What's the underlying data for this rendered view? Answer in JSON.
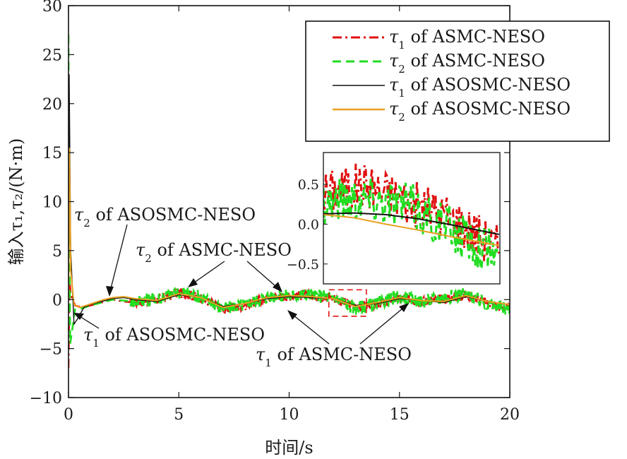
{
  "chart_data": {
    "type": "line",
    "title": "",
    "xlabel": "时间/s",
    "ylabel": "输入τ₁,τ₂/(N·m)",
    "xlim": [
      0,
      20
    ],
    "ylim": [
      -10,
      30
    ],
    "xticks": [
      "0",
      "5",
      "10",
      "15",
      "20"
    ],
    "yticks": [
      "30",
      "25",
      "20",
      "15",
      "10",
      "5",
      "0",
      "−5",
      "−10"
    ],
    "grid": false,
    "legend_position": "top-right",
    "legend": [
      {
        "symbol": "τ",
        "sub": "1",
        "text": " of ASMC-NESO"
      },
      {
        "symbol": "τ",
        "sub": "2",
        "text": " of ASMC-NESO"
      },
      {
        "symbol": "τ",
        "sub": "1",
        "text": " of ASOSMC-NESO"
      },
      {
        "symbol": "τ",
        "sub": "2",
        "text": " of ASOSMC-NESO"
      }
    ],
    "series": [
      {
        "name": "τ1 of ASMC-NESO",
        "color": "#e01010",
        "dash": "dash-dot",
        "x": [
          0,
          0.05,
          0.1,
          0.3,
          0.6,
          1.0,
          1.5,
          2.0,
          2.5,
          3,
          4,
          5,
          6,
          7,
          8,
          9,
          10,
          11,
          12,
          13,
          14,
          15,
          16,
          17,
          18,
          19,
          20
        ],
        "y": [
          -7.0,
          2.0,
          0.5,
          -0.6,
          -0.8,
          -0.6,
          -0.3,
          0.0,
          -0.2,
          -0.3,
          0.0,
          0.7,
          0.2,
          -1.0,
          -0.6,
          0.2,
          0.4,
          0.4,
          0.2,
          -0.8,
          -0.5,
          0.2,
          -0.2,
          0.0,
          0.5,
          -0.4,
          -1.0
        ],
        "noise": 0.5
      },
      {
        "name": "τ2 of ASMC-NESO",
        "color": "#22dd22",
        "dash": "dash",
        "x": [
          0,
          0.03,
          0.08,
          0.3,
          0.6,
          1.0,
          1.5,
          2.0,
          2.5,
          3,
          4,
          5,
          6,
          7,
          8,
          9,
          10,
          11,
          12,
          13,
          14,
          15,
          16,
          17,
          18,
          19,
          20
        ],
        "y": [
          27.0,
          8.0,
          -4.5,
          -1.0,
          -0.9,
          -0.6,
          -0.3,
          0.0,
          -0.1,
          -0.2,
          0.1,
          0.8,
          0.3,
          -1.0,
          -0.5,
          0.3,
          0.4,
          0.5,
          0.2,
          -0.9,
          -0.4,
          0.3,
          -0.2,
          0.2,
          0.6,
          -0.5,
          -1.0
        ],
        "noise": 0.7
      },
      {
        "name": "τ1 of ASOSMC-NESO",
        "color": "#111111",
        "dash": "solid",
        "x": [
          0,
          0.03,
          0.1,
          0.25,
          0.4,
          0.7,
          1.0,
          1.5,
          2.0,
          2.5,
          3,
          4,
          5,
          6,
          7,
          8,
          9,
          10,
          11,
          12,
          13,
          14,
          15,
          16,
          17,
          18,
          19,
          20
        ],
        "y": [
          0.0,
          23.0,
          5.0,
          -2.5,
          -2.0,
          -0.8,
          -0.5,
          -0.2,
          0.1,
          0.2,
          0.0,
          -0.2,
          0.5,
          0.2,
          -0.7,
          -0.4,
          0.1,
          0.3,
          0.2,
          0.1,
          -0.6,
          -0.4,
          0.1,
          -0.1,
          -0.3,
          0.3,
          -0.2,
          -0.5
        ],
        "noise": 0.0
      },
      {
        "name": "τ2 of ASOSMC-NESO",
        "color": "#e8a020",
        "dash": "solid",
        "x": [
          0,
          0.04,
          0.1,
          0.25,
          0.5,
          0.8,
          1.2,
          1.6,
          2.0,
          2.5,
          3,
          4,
          5,
          6,
          7,
          8,
          9,
          10,
          11,
          12,
          13,
          14,
          15,
          16,
          17,
          18,
          19,
          20
        ],
        "y": [
          0.0,
          15.5,
          3.0,
          -0.5,
          -0.8,
          -0.6,
          -0.3,
          0.0,
          0.2,
          0.3,
          0.1,
          -0.1,
          0.6,
          0.2,
          -0.8,
          -0.4,
          0.2,
          0.4,
          0.3,
          0.1,
          -0.7,
          -0.3,
          0.2,
          -0.1,
          -0.2,
          0.4,
          -0.2,
          -0.5
        ],
        "noise": 0.0
      }
    ],
    "annotations": [
      {
        "symbol": "τ",
        "sub": "2",
        "text": " of ASOSMC-NESO"
      },
      {
        "symbol": "τ",
        "sub": "2",
        "text": " of ASMC-NESO"
      },
      {
        "symbol": "τ",
        "sub": "1",
        "text": " of ASOSMC-NESO"
      },
      {
        "symbol": "τ",
        "sub": "1",
        "text": " of ASMC-NESO"
      }
    ],
    "zoom_region": {
      "x": [
        11.8,
        13.5
      ],
      "y": [
        -1.7,
        1.0
      ]
    },
    "inset": {
      "xlim": [
        11.8,
        13.5
      ],
      "ylim": [
        -0.75,
        0.9
      ],
      "yticks": [
        "0.5",
        "0.0",
        "−0.5"
      ],
      "series": [
        {
          "name": "τ1 of ASMC-NESO",
          "color": "#e01010",
          "x": [
            11.8,
            12.2,
            12.6,
            13.0,
            13.5
          ],
          "y": [
            0.4,
            0.5,
            0.3,
            0.1,
            -0.3
          ],
          "noise": 0.3
        },
        {
          "name": "τ2 of ASMC-NESO",
          "color": "#22dd22",
          "x": [
            11.8,
            12.2,
            12.6,
            13.0,
            13.5
          ],
          "y": [
            0.3,
            0.35,
            0.25,
            -0.05,
            -0.4
          ],
          "noise": 0.3
        },
        {
          "name": "τ1 of ASOSMC-NESO",
          "color": "#111111",
          "x": [
            11.8,
            12.1,
            12.4,
            12.7,
            13.0,
            13.5
          ],
          "y": [
            0.13,
            0.14,
            0.12,
            0.07,
            0.0,
            -0.13
          ],
          "noise": 0.0
        },
        {
          "name": "τ2 of ASOSMC-NESO",
          "color": "#e8a020",
          "x": [
            11.8,
            12.1,
            12.4,
            12.7,
            13.0,
            13.5
          ],
          "y": [
            0.12,
            0.08,
            0.0,
            -0.07,
            -0.15,
            -0.27
          ],
          "noise": 0.0
        }
      ]
    }
  }
}
